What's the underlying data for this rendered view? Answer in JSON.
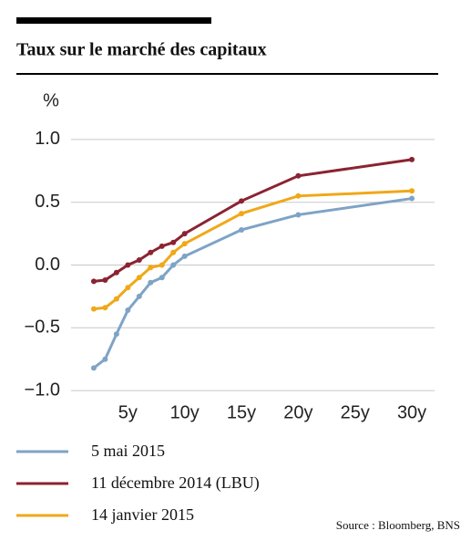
{
  "chart_data": {
    "type": "line",
    "title": "Taux sur le marché des capitaux",
    "y_label": "%",
    "xlim": [
      0,
      32
    ],
    "ylim": [
      -1.05,
      1.05
    ],
    "xticks": [
      {
        "value": 5,
        "label": "5y"
      },
      {
        "value": 10,
        "label": "10y"
      },
      {
        "value": 15,
        "label": "15y"
      },
      {
        "value": 20,
        "label": "20y"
      },
      {
        "value": 25,
        "label": "25y"
      },
      {
        "value": 30,
        "label": "30y"
      }
    ],
    "yticks": [
      {
        "value": -1,
        "label": "−1.0"
      },
      {
        "value": -0.5,
        "label": "−0.5"
      },
      {
        "value": 0,
        "label": "0.0"
      },
      0.5,
      {
        "value": 1,
        "label": "1.0"
      }
    ],
    "grid": true,
    "x": [
      2,
      3,
      4,
      5,
      6,
      7,
      8,
      9,
      10,
      15,
      20,
      30
    ],
    "series": [
      {
        "name": "5 mai 2015",
        "color": "#7ea3c6",
        "values": [
          -0.82,
          -0.75,
          -0.55,
          -0.36,
          -0.25,
          -0.14,
          -0.1,
          0.0,
          0.07,
          0.28,
          0.4,
          0.53
        ]
      },
      {
        "name": "11 décembre 2014 (LBU)",
        "color": "#8b2332",
        "values": [
          -0.13,
          -0.12,
          -0.06,
          0.0,
          0.04,
          0.1,
          0.15,
          0.18,
          0.25,
          0.51,
          0.71,
          0.84
        ]
      },
      {
        "name": "14 janvier 2015",
        "color": "#f0a818",
        "values": [
          -0.35,
          -0.34,
          -0.27,
          -0.18,
          -0.1,
          -0.02,
          0.0,
          0.1,
          0.17,
          0.41,
          0.55,
          0.59
        ]
      }
    ],
    "source": "Source : Bloomberg, BNS"
  }
}
